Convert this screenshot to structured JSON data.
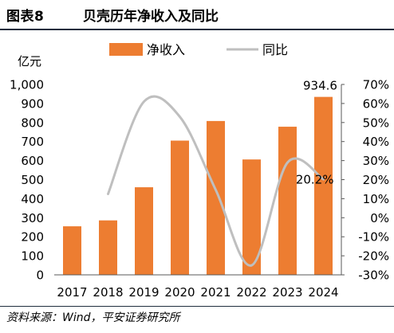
{
  "header": {
    "figure_label": "图表8",
    "title": "贝壳历年净收入及同比"
  },
  "footer": {
    "source": "资料来源：Wind，平安证券研究所"
  },
  "colors": {
    "bar": "#ED7D31",
    "line": "#BFBFBF",
    "rule": "#1F2D3D"
  },
  "chart_data": {
    "type": "bar",
    "categories": [
      "2017",
      "2018",
      "2019",
      "2020",
      "2021",
      "2022",
      "2023",
      "2024"
    ],
    "series": [
      {
        "name": "净收入",
        "type": "bar",
        "axis": "left",
        "values": [
          255,
          286,
          460,
          705,
          808,
          606,
          778,
          934.6
        ]
      },
      {
        "name": "同比",
        "type": "line",
        "axis": "right",
        "smooth": true,
        "values": [
          null,
          12.5,
          61,
          53,
          14.6,
          -25,
          29,
          20.2
        ]
      }
    ],
    "y_left": {
      "unit": "亿元",
      "min": 0,
      "max": 1000,
      "ticks": [
        "0",
        "100",
        "200",
        "300",
        "400",
        "500",
        "600",
        "700",
        "800",
        "900",
        "1,000"
      ]
    },
    "y_right": {
      "min": -30,
      "max": 70,
      "ticks": [
        "-30%",
        "-20%",
        "-10%",
        "0%",
        "10%",
        "20%",
        "30%",
        "40%",
        "50%",
        "60%",
        "70%"
      ]
    },
    "data_labels": [
      {
        "series": 0,
        "index": 7,
        "text": "934.6"
      },
      {
        "series": 1,
        "index": 7,
        "text": "20.2%"
      }
    ],
    "legend_position": "top",
    "grid": false
  }
}
